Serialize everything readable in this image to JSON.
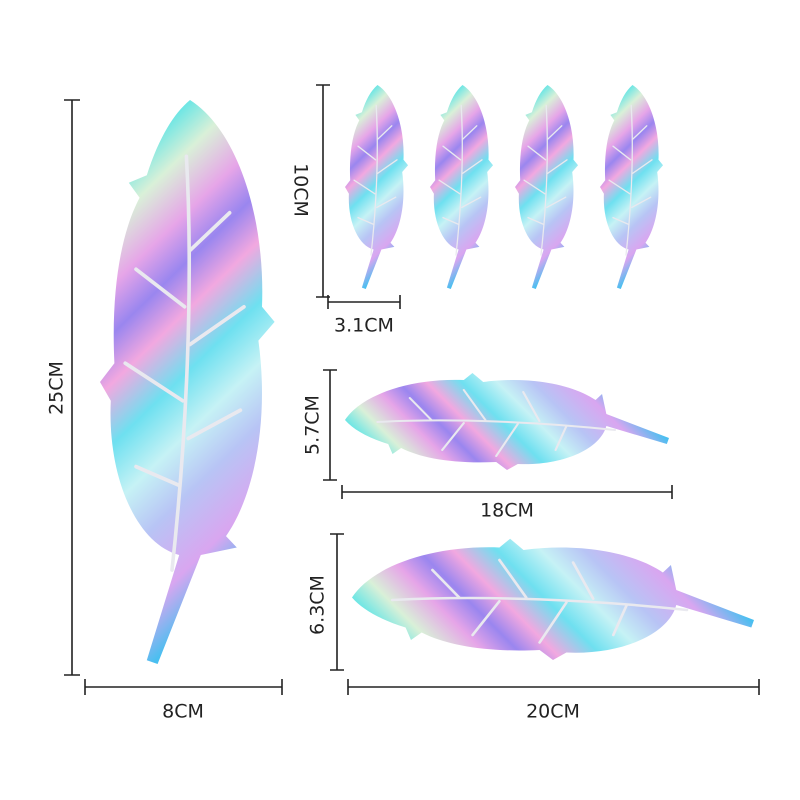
{
  "items": [
    {
      "height": "25CM",
      "width": "8CM"
    },
    {
      "height": "10CM",
      "width": "3.1CM"
    },
    {
      "height": "5.7CM",
      "width": "18CM"
    },
    {
      "height": "6.3CM",
      "width": "20CM"
    }
  ]
}
